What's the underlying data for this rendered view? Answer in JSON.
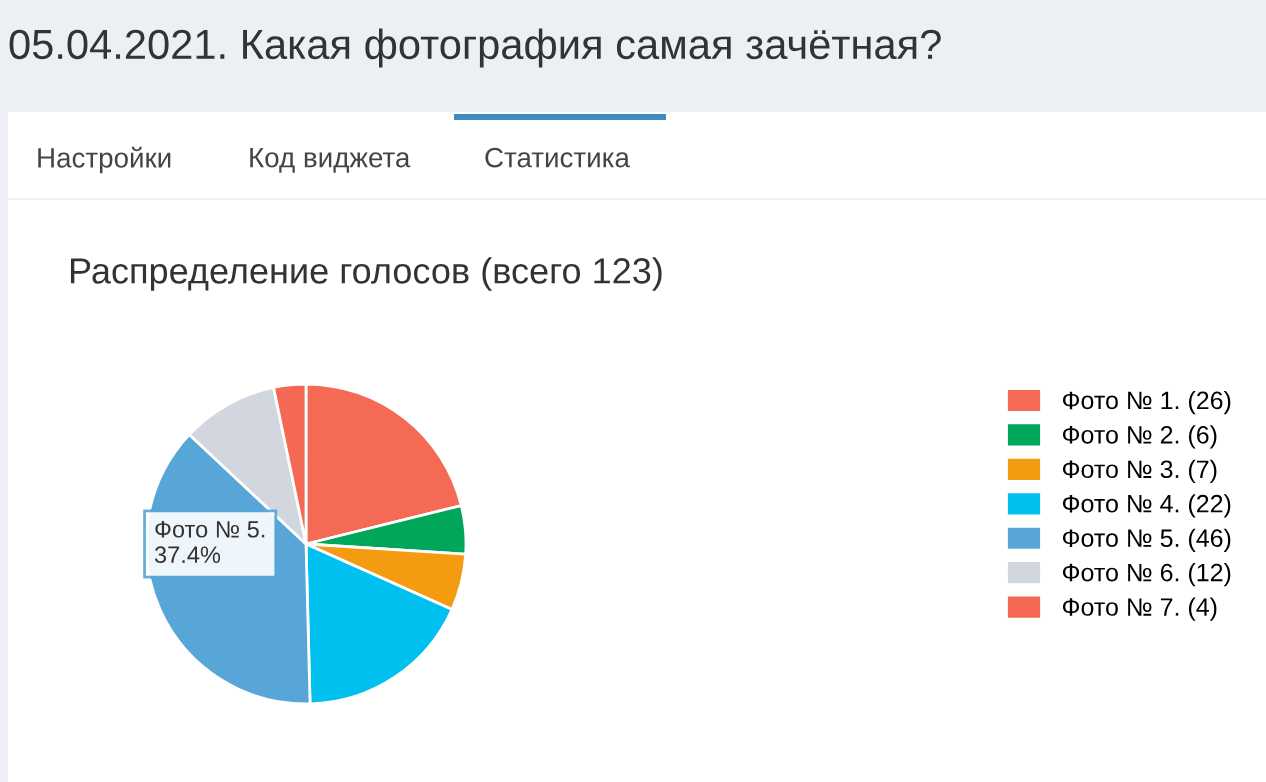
{
  "chart_data": {
    "type": "pie",
    "title": "05.04.2021. Какая фотография самая зачётная?",
    "subtitle": "Распределение голосов (всего 123)",
    "categories": [
      "Фото № 1.",
      "Фото № 2.",
      "Фото № 3.",
      "Фото № 4.",
      "Фото № 5.",
      "Фото № 6.",
      "Фото № 7."
    ],
    "values": [
      26,
      6,
      7,
      22,
      46,
      12,
      4
    ],
    "value_labels": [
      "(26)",
      "(6)",
      "(7)",
      "(22)",
      "(46)",
      "(12)",
      "(4)"
    ],
    "colors": [
      "#f56a55",
      "#00a65a",
      "#f39c12",
      "#00c0ef",
      "#58a6d8",
      "#d2d6de",
      "#f56954"
    ],
    "legend": "right",
    "annotations": [
      "Настройки",
      "Код виджета",
      "Статистика",
      "Фото № 5.\n37.4%"
    ]
  }
}
